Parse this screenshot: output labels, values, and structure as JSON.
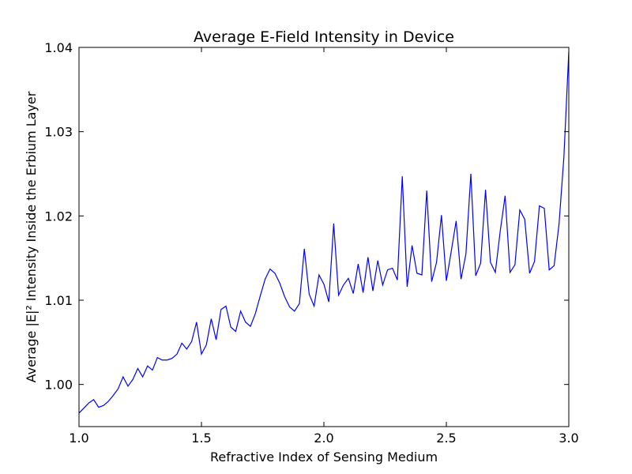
{
  "chart_data": {
    "type": "line",
    "title": "Average E-Field Intensity in Device",
    "xlabel": "Refractive Index of Sensing Medium",
    "ylabel": "Average |E|² Intensity Inside the Erbium Layer",
    "xlim": [
      1.0,
      3.0
    ],
    "ylim": [
      0.995,
      1.04
    ],
    "xticks": [
      1.0,
      1.5,
      2.0,
      2.5,
      3.0
    ],
    "xtick_labels": [
      "1.0",
      "1.5",
      "2.0",
      "2.5",
      "3.0"
    ],
    "yticks": [
      1.0,
      1.01,
      1.02,
      1.03,
      1.04
    ],
    "ytick_labels": [
      "1.00",
      "1.01",
      "1.02",
      "1.03",
      "1.04"
    ],
    "grid": false,
    "legend": "none",
    "series": [
      {
        "color": "#0000ff",
        "x": [
          1.0,
          1.02,
          1.04,
          1.06,
          1.08,
          1.1,
          1.12,
          1.14,
          1.16,
          1.18,
          1.2,
          1.22,
          1.24,
          1.26,
          1.28,
          1.3,
          1.32,
          1.34,
          1.36,
          1.38,
          1.4,
          1.42,
          1.44,
          1.46,
          1.48,
          1.5,
          1.52,
          1.54,
          1.56,
          1.58,
          1.6,
          1.62,
          1.64,
          1.66,
          1.68,
          1.7,
          1.72,
          1.74,
          1.76,
          1.78,
          1.8,
          1.82,
          1.84,
          1.86,
          1.88,
          1.9,
          1.92,
          1.94,
          1.96,
          1.98,
          2.0,
          2.02,
          2.04,
          2.06,
          2.08,
          2.1,
          2.12,
          2.14,
          2.16,
          2.18,
          2.2,
          2.22,
          2.24,
          2.26,
          2.28,
          2.3,
          2.32,
          2.34,
          2.36,
          2.38,
          2.4,
          2.42,
          2.44,
          2.46,
          2.48,
          2.5,
          2.52,
          2.54,
          2.56,
          2.58,
          2.6,
          2.62,
          2.64,
          2.66,
          2.68,
          2.7,
          2.72,
          2.74,
          2.76,
          2.78,
          2.8,
          2.82,
          2.84,
          2.86,
          2.88,
          2.9,
          2.92,
          2.94,
          2.96,
          2.98,
          3.0
        ],
        "y": [
          0.9966,
          0.9972,
          0.9978,
          0.9982,
          0.9973,
          0.9975,
          0.998,
          0.9987,
          0.9995,
          1.0009,
          0.9998,
          1.0006,
          1.0019,
          1.0009,
          1.0022,
          1.0017,
          1.0032,
          1.0029,
          1.0029,
          1.0031,
          1.0036,
          1.0049,
          1.0042,
          1.0051,
          1.0074,
          1.0036,
          1.0047,
          1.0078,
          1.0053,
          1.0089,
          1.0093,
          1.0068,
          1.0063,
          1.0087,
          1.0074,
          1.0069,
          1.0084,
          1.0105,
          1.0125,
          1.0137,
          1.0132,
          1.012,
          1.0104,
          1.0092,
          1.0087,
          1.0096,
          1.0161,
          1.0107,
          1.0093,
          1.013,
          1.0119,
          1.0098,
          1.0191,
          1.0106,
          1.0118,
          1.0126,
          1.0108,
          1.0143,
          1.0109,
          1.0151,
          1.0111,
          1.0147,
          1.0118,
          1.0136,
          1.0138,
          1.0124,
          1.0247,
          1.0116,
          1.0165,
          1.0132,
          1.013,
          1.023,
          1.0122,
          1.0145,
          1.0201,
          1.0123,
          1.0158,
          1.0194,
          1.0125,
          1.0155,
          1.025,
          1.0129,
          1.0144,
          1.0231,
          1.0145,
          1.0133,
          1.0182,
          1.0224,
          1.0133,
          1.0142,
          1.0207,
          1.0196,
          1.0132,
          1.0146,
          1.0212,
          1.0209,
          1.0136,
          1.0141,
          1.019,
          1.027,
          1.0395
        ]
      }
    ]
  }
}
